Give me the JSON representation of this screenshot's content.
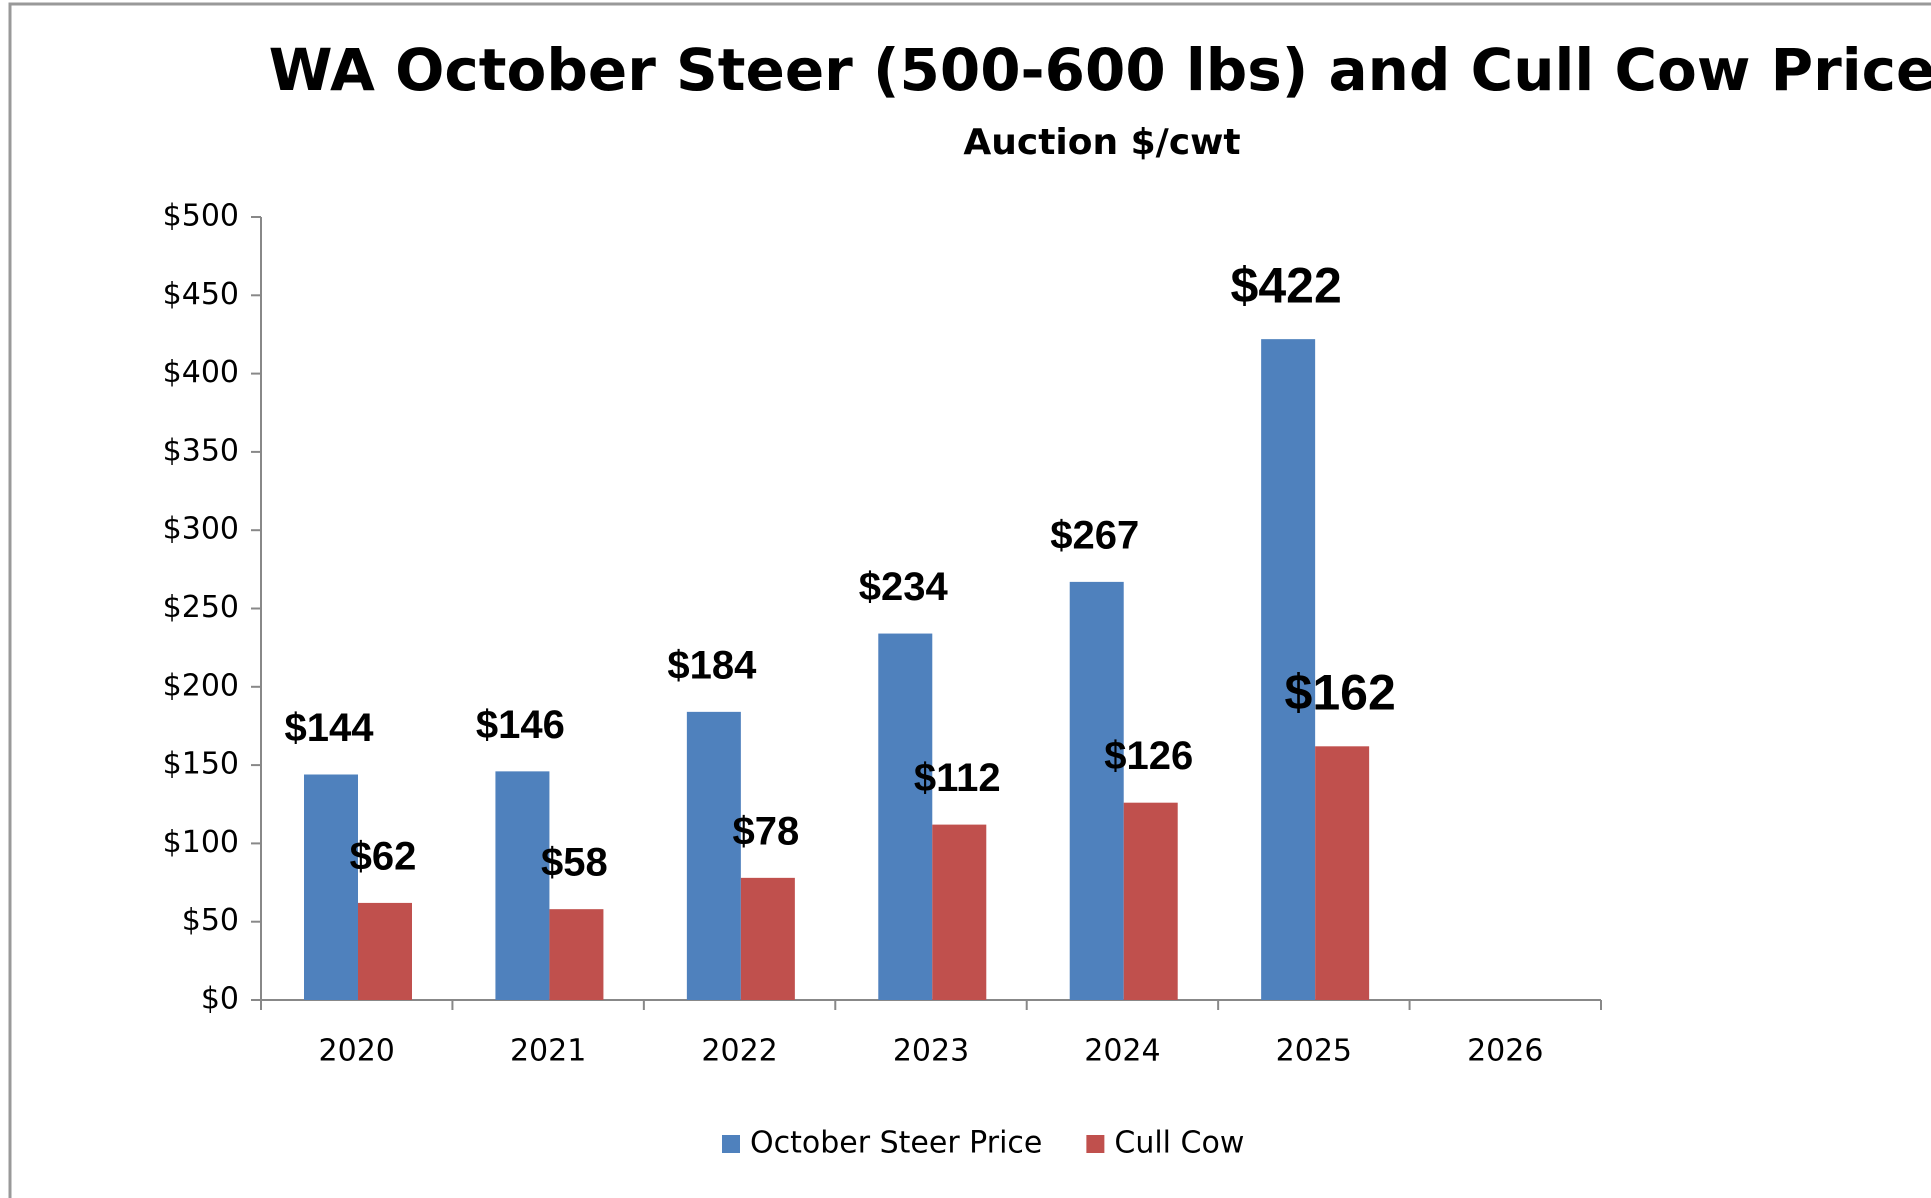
{
  "chart_data": {
    "type": "bar",
    "title": "WA October Steer (500-600 lbs) and Cull Cow Price",
    "subtitle": "Auction $/cwt",
    "categories": [
      "2020",
      "2021",
      "2022",
      "2023",
      "2024",
      "2025",
      "2026"
    ],
    "series": [
      {
        "name": "October Steer Price",
        "color": "#4f81bd",
        "values": [
          144,
          146,
          184,
          234,
          267,
          422,
          null
        ],
        "value_labels": [
          "$144",
          "$146",
          "$184",
          "$234",
          "$267",
          "$422",
          null
        ]
      },
      {
        "name": "Cull Cow",
        "color": "#c0504d",
        "values": [
          62,
          58,
          78,
          112,
          126,
          162,
          null
        ],
        "value_labels": [
          "$62",
          "$58",
          "$78",
          "$112",
          "$126",
          "$162",
          null
        ]
      }
    ],
    "ylim": [
      0,
      500
    ],
    "yticks": [
      {
        "value": 0,
        "label": "$0"
      },
      {
        "value": 50,
        "label": "$50"
      },
      {
        "value": 100,
        "label": "$100"
      },
      {
        "value": 150,
        "label": "$150"
      },
      {
        "value": 200,
        "label": "$200"
      },
      {
        "value": 250,
        "label": "$250"
      },
      {
        "value": 300,
        "label": "$300"
      },
      {
        "value": 350,
        "label": "$350"
      },
      {
        "value": 400,
        "label": "$400"
      },
      {
        "value": 450,
        "label": "$450"
      },
      {
        "value": 500,
        "label": "$500"
      }
    ],
    "legend": "bottom"
  }
}
